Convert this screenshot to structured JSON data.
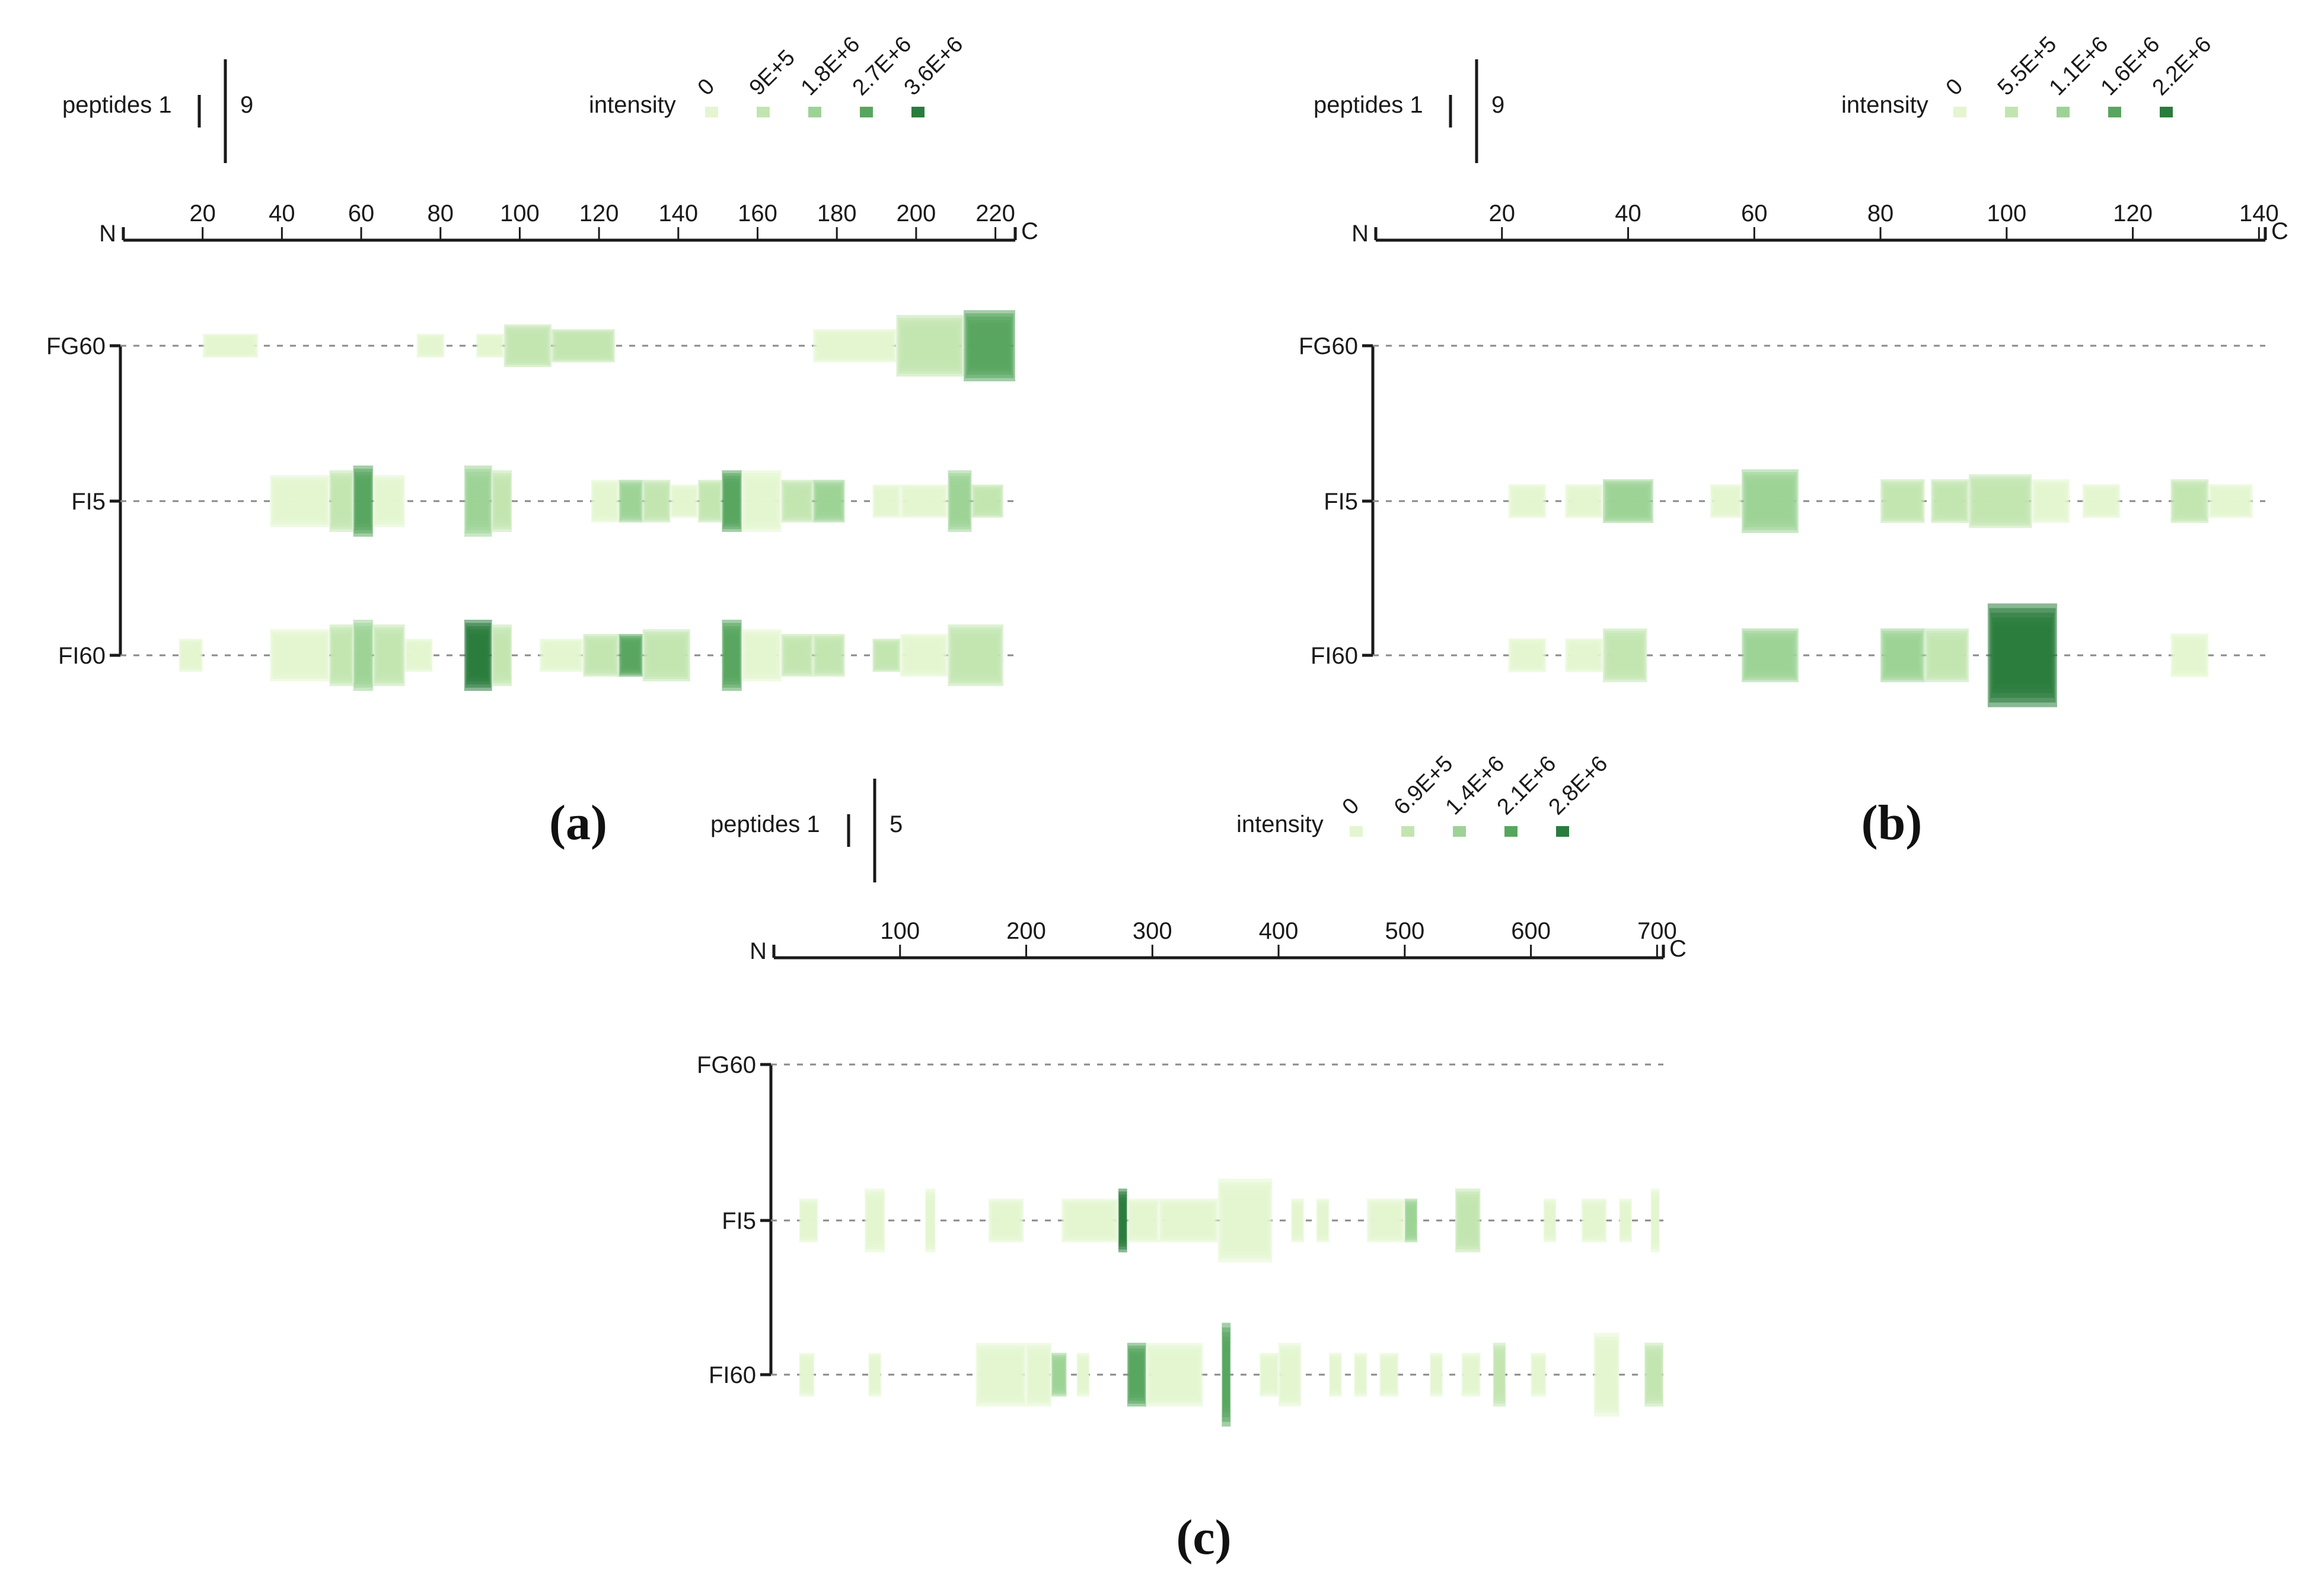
{
  "chart_data": [
    {
      "type": "peptide-coverage",
      "panel_label": "(a)",
      "axis": {
        "n_label": "N",
        "c_label": "C",
        "min": 0,
        "max": 225,
        "ticks": [
          20,
          40,
          60,
          80,
          100,
          120,
          140,
          160,
          180,
          200,
          220
        ]
      },
      "legend": {
        "peptides_label": "peptides",
        "peptides_min": "1",
        "peptides_max": "9",
        "intensity_label": "intensity",
        "intensity_levels": [
          "0",
          "9E+5",
          "1.8E+6",
          "2.7E+6",
          "3.6E+6"
        ]
      },
      "rows": [
        {
          "label": "FG60",
          "segments": [
            {
              "start": 20,
              "end": 34,
              "level": 0,
              "count": 1
            },
            {
              "start": 74,
              "end": 81,
              "level": 0,
              "count": 1
            },
            {
              "start": 89,
              "end": 96,
              "level": 0,
              "count": 1
            },
            {
              "start": 96,
              "end": 108,
              "level": 1,
              "count": 3
            },
            {
              "start": 108,
              "end": 124,
              "level": 1,
              "count": 2
            },
            {
              "start": 174,
              "end": 195,
              "level": 0,
              "count": 2
            },
            {
              "start": 195,
              "end": 212,
              "level": 1,
              "count": 5
            },
            {
              "start": 212,
              "end": 225,
              "level": 3,
              "count": 6
            }
          ]
        },
        {
          "label": "FI5",
          "segments": [
            {
              "start": 37,
              "end": 52,
              "level": 0,
              "count": 4
            },
            {
              "start": 52,
              "end": 58,
              "level": 1,
              "count": 5
            },
            {
              "start": 58,
              "end": 63,
              "level": 3,
              "count": 6
            },
            {
              "start": 63,
              "end": 71,
              "level": 0,
              "count": 4
            },
            {
              "start": 86,
              "end": 93,
              "level": 2,
              "count": 6
            },
            {
              "start": 93,
              "end": 98,
              "level": 1,
              "count": 5
            },
            {
              "start": 118,
              "end": 125,
              "level": 0,
              "count": 3
            },
            {
              "start": 125,
              "end": 131,
              "level": 2,
              "count": 3
            },
            {
              "start": 131,
              "end": 138,
              "level": 1,
              "count": 3
            },
            {
              "start": 138,
              "end": 145,
              "level": 0,
              "count": 2
            },
            {
              "start": 145,
              "end": 151,
              "level": 1,
              "count": 3
            },
            {
              "start": 151,
              "end": 156,
              "level": 3,
              "count": 5
            },
            {
              "start": 156,
              "end": 166,
              "level": 0,
              "count": 5
            },
            {
              "start": 166,
              "end": 174,
              "level": 1,
              "count": 3
            },
            {
              "start": 174,
              "end": 182,
              "level": 2,
              "count": 3
            },
            {
              "start": 189,
              "end": 196,
              "level": 0,
              "count": 2
            },
            {
              "start": 196,
              "end": 208,
              "level": 0,
              "count": 2
            },
            {
              "start": 208,
              "end": 214,
              "level": 2,
              "count": 5
            },
            {
              "start": 214,
              "end": 222,
              "level": 1,
              "count": 2
            }
          ]
        },
        {
          "label": "FI60",
          "segments": [
            {
              "start": 14,
              "end": 20,
              "level": 0,
              "count": 2
            },
            {
              "start": 37,
              "end": 52,
              "level": 0,
              "count": 4
            },
            {
              "start": 52,
              "end": 58,
              "level": 1,
              "count": 5
            },
            {
              "start": 58,
              "end": 63,
              "level": 2,
              "count": 6
            },
            {
              "start": 63,
              "end": 71,
              "level": 1,
              "count": 5
            },
            {
              "start": 71,
              "end": 78,
              "level": 0,
              "count": 2
            },
            {
              "start": 86,
              "end": 93,
              "level": 4,
              "count": 6
            },
            {
              "start": 93,
              "end": 98,
              "level": 1,
              "count": 5
            },
            {
              "start": 105,
              "end": 116,
              "level": 0,
              "count": 2
            },
            {
              "start": 116,
              "end": 125,
              "level": 1,
              "count": 3
            },
            {
              "start": 125,
              "end": 131,
              "level": 3,
              "count": 3
            },
            {
              "start": 131,
              "end": 143,
              "level": 1,
              "count": 4
            },
            {
              "start": 151,
              "end": 156,
              "level": 3,
              "count": 6
            },
            {
              "start": 156,
              "end": 166,
              "level": 0,
              "count": 4
            },
            {
              "start": 166,
              "end": 174,
              "level": 1,
              "count": 3
            },
            {
              "start": 174,
              "end": 182,
              "level": 1,
              "count": 3
            },
            {
              "start": 189,
              "end": 196,
              "level": 1,
              "count": 2
            },
            {
              "start": 196,
              "end": 208,
              "level": 0,
              "count": 3
            },
            {
              "start": 208,
              "end": 222,
              "level": 1,
              "count": 5
            }
          ]
        }
      ]
    },
    {
      "type": "peptide-coverage",
      "panel_label": "(b)",
      "axis": {
        "n_label": "N",
        "c_label": "C",
        "min": 0,
        "max": 141,
        "ticks": [
          20,
          40,
          60,
          80,
          100,
          120,
          140
        ]
      },
      "legend": {
        "peptides_label": "peptides",
        "peptides_min": "1",
        "peptides_max": "9",
        "intensity_label": "intensity",
        "intensity_levels": [
          "0",
          "5.5E+5",
          "1.1E+6",
          "1.6E+6",
          "2.2E+6"
        ]
      },
      "rows": [
        {
          "label": "FG60",
          "segments": []
        },
        {
          "label": "FI5",
          "segments": [
            {
              "start": 21,
              "end": 27,
              "level": 0,
              "count": 2
            },
            {
              "start": 30,
              "end": 36,
              "level": 0,
              "count": 2
            },
            {
              "start": 36,
              "end": 44,
              "level": 2,
              "count": 3
            },
            {
              "start": 53,
              "end": 58,
              "level": 0,
              "count": 2
            },
            {
              "start": 58,
              "end": 67,
              "level": 2,
              "count": 5
            },
            {
              "start": 80,
              "end": 87,
              "level": 1,
              "count": 3
            },
            {
              "start": 88,
              "end": 94,
              "level": 1,
              "count": 3
            },
            {
              "start": 94,
              "end": 104,
              "level": 1,
              "count": 4
            },
            {
              "start": 104,
              "end": 110,
              "level": 0,
              "count": 3
            },
            {
              "start": 112,
              "end": 118,
              "level": 0,
              "count": 2
            },
            {
              "start": 126,
              "end": 132,
              "level": 1,
              "count": 3
            },
            {
              "start": 132,
              "end": 139,
              "level": 0,
              "count": 2
            }
          ]
        },
        {
          "label": "FI60",
          "segments": [
            {
              "start": 21,
              "end": 27,
              "level": 0,
              "count": 2
            },
            {
              "start": 30,
              "end": 36,
              "level": 0,
              "count": 2
            },
            {
              "start": 36,
              "end": 43,
              "level": 1,
              "count": 4
            },
            {
              "start": 58,
              "end": 67,
              "level": 2,
              "count": 4
            },
            {
              "start": 80,
              "end": 87,
              "level": 2,
              "count": 4
            },
            {
              "start": 87,
              "end": 94,
              "level": 1,
              "count": 4
            },
            {
              "start": 97,
              "end": 108,
              "level": 4,
              "count": 9
            },
            {
              "start": 126,
              "end": 132,
              "level": 0,
              "count": 3
            }
          ]
        }
      ]
    },
    {
      "type": "peptide-coverage",
      "panel_label": "(c)",
      "axis": {
        "n_label": "N",
        "c_label": "C",
        "min": 0,
        "max": 705,
        "ticks": [
          100,
          200,
          300,
          400,
          500,
          600,
          700
        ]
      },
      "legend": {
        "peptides_label": "peptides",
        "peptides_min": "1",
        "peptides_max": "5",
        "intensity_label": "intensity",
        "intensity_levels": [
          "0",
          "6.9E+5",
          "1.4E+6",
          "2.1E+6",
          "2.8E+6"
        ]
      },
      "rows": [
        {
          "label": "FG60",
          "segments": []
        },
        {
          "label": "FI5",
          "segments": [
            {
              "start": 20,
              "end": 35,
              "level": 0,
              "count": 2
            },
            {
              "start": 72,
              "end": 88,
              "level": 0,
              "count": 3
            },
            {
              "start": 120,
              "end": 128,
              "level": 0,
              "count": 3
            },
            {
              "start": 170,
              "end": 198,
              "level": 0,
              "count": 2
            },
            {
              "start": 228,
              "end": 273,
              "level": 0,
              "count": 2
            },
            {
              "start": 273,
              "end": 280,
              "level": 4,
              "count": 3
            },
            {
              "start": 280,
              "end": 305,
              "level": 0,
              "count": 2
            },
            {
              "start": 305,
              "end": 352,
              "level": 0,
              "count": 2
            },
            {
              "start": 352,
              "end": 395,
              "level": 0,
              "count": 4
            },
            {
              "start": 410,
              "end": 420,
              "level": 0,
              "count": 2
            },
            {
              "start": 430,
              "end": 440,
              "level": 0,
              "count": 2
            },
            {
              "start": 470,
              "end": 500,
              "level": 0,
              "count": 2
            },
            {
              "start": 500,
              "end": 510,
              "level": 2,
              "count": 2
            },
            {
              "start": 540,
              "end": 560,
              "level": 1,
              "count": 3
            },
            {
              "start": 610,
              "end": 620,
              "level": 0,
              "count": 2
            },
            {
              "start": 640,
              "end": 660,
              "level": 0,
              "count": 2
            },
            {
              "start": 670,
              "end": 680,
              "level": 0,
              "count": 2
            },
            {
              "start": 695,
              "end": 702,
              "level": 0,
              "count": 3
            }
          ]
        },
        {
          "label": "FI60",
          "segments": [
            {
              "start": 20,
              "end": 32,
              "level": 0,
              "count": 2
            },
            {
              "start": 75,
              "end": 85,
              "level": 0,
              "count": 2
            },
            {
              "start": 160,
              "end": 200,
              "level": 0,
              "count": 3
            },
            {
              "start": 200,
              "end": 220,
              "level": 0,
              "count": 3
            },
            {
              "start": 220,
              "end": 232,
              "level": 2,
              "count": 2
            },
            {
              "start": 240,
              "end": 250,
              "level": 0,
              "count": 2
            },
            {
              "start": 280,
              "end": 295,
              "level": 3,
              "count": 3
            },
            {
              "start": 295,
              "end": 340,
              "level": 0,
              "count": 3
            },
            {
              "start": 355,
              "end": 362,
              "level": 3,
              "count": 5
            },
            {
              "start": 385,
              "end": 400,
              "level": 0,
              "count": 2
            },
            {
              "start": 400,
              "end": 418,
              "level": 0,
              "count": 3
            },
            {
              "start": 440,
              "end": 450,
              "level": 0,
              "count": 2
            },
            {
              "start": 460,
              "end": 470,
              "level": 0,
              "count": 2
            },
            {
              "start": 480,
              "end": 495,
              "level": 0,
              "count": 2
            },
            {
              "start": 520,
              "end": 530,
              "level": 0,
              "count": 2
            },
            {
              "start": 545,
              "end": 560,
              "level": 0,
              "count": 2
            },
            {
              "start": 570,
              "end": 580,
              "level": 1,
              "count": 3
            },
            {
              "start": 600,
              "end": 612,
              "level": 0,
              "count": 2
            },
            {
              "start": 650,
              "end": 670,
              "level": 0,
              "count": 4
            },
            {
              "start": 690,
              "end": 705,
              "level": 1,
              "count": 3
            }
          ]
        }
      ]
    }
  ],
  "colors": {
    "levels": [
      "#e4f5cf",
      "#c2e5b0",
      "#9cd395",
      "#58a65e",
      "#2a7c3c"
    ],
    "axis": "#1a1a1a",
    "guide": "#8a8a8a"
  }
}
